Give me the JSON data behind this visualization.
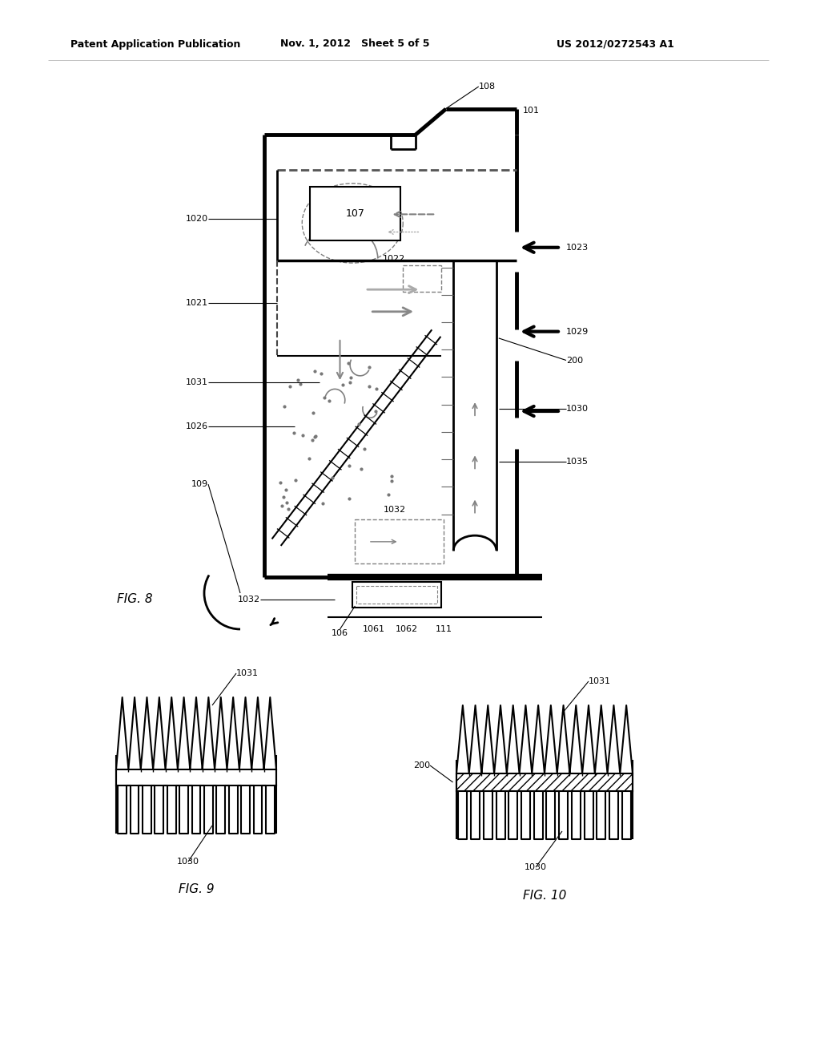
{
  "header_left": "Patent Application Publication",
  "header_mid": "Nov. 1, 2012   Sheet 5 of 5",
  "header_right": "US 2012/0272543 A1",
  "fig8_label": "FIG. 8",
  "fig9_label": "FIG. 9",
  "fig10_label": "FIG. 10",
  "bg_color": "#ffffff"
}
